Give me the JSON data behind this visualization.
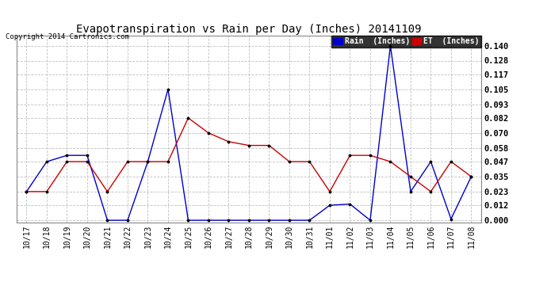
{
  "title": "Evapotranspiration vs Rain per Day (Inches) 20141109",
  "copyright": "Copyright 2014 Cartronics.com",
  "labels": [
    "10/17",
    "10/18",
    "10/19",
    "10/20",
    "10/21",
    "10/22",
    "10/23",
    "10/24",
    "10/25",
    "10/26",
    "10/27",
    "10/28",
    "10/29",
    "10/30",
    "10/31",
    "11/01",
    "11/02",
    "11/03",
    "11/04",
    "11/05",
    "11/06",
    "11/07",
    "11/08"
  ],
  "rain": [
    0.023,
    0.047,
    0.052,
    0.052,
    0.0,
    0.0,
    0.047,
    0.105,
    0.0,
    0.0,
    0.0,
    0.0,
    0.0,
    0.0,
    0.0,
    0.012,
    0.013,
    0.0,
    0.14,
    0.023,
    0.047,
    0.001,
    0.035
  ],
  "et": [
    0.023,
    0.023,
    0.047,
    0.047,
    0.023,
    0.047,
    0.047,
    0.047,
    0.082,
    0.07,
    0.063,
    0.06,
    0.06,
    0.047,
    0.047,
    0.023,
    0.052,
    0.052,
    0.047,
    0.035,
    0.023,
    0.047,
    0.035
  ],
  "rain_color": "#0000cc",
  "et_color": "#cc0000",
  "bg_color": "#ffffff",
  "grid_color": "#c0c0c0",
  "yticks": [
    0.0,
    0.012,
    0.023,
    0.035,
    0.047,
    0.058,
    0.07,
    0.082,
    0.093,
    0.105,
    0.117,
    0.128,
    0.14
  ],
  "ylim": [
    -0.002,
    0.148
  ],
  "title_fontsize": 10,
  "copyright_fontsize": 6.5,
  "tick_fontsize": 7
}
